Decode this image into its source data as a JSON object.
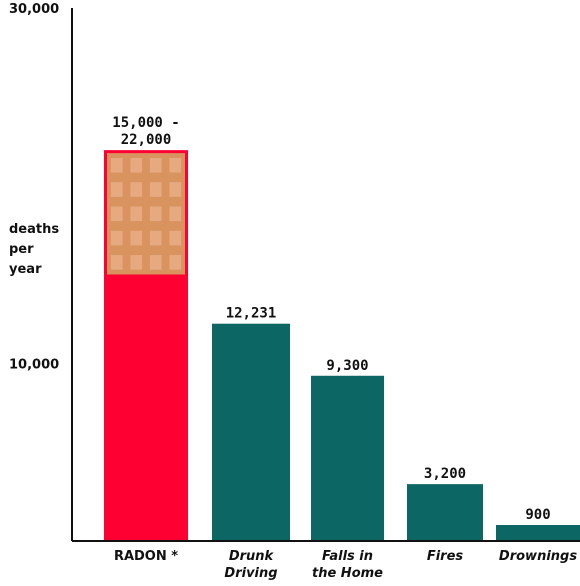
{
  "chart_data": {
    "type": "bar",
    "ylabel": "deaths per year",
    "ylabel_lines": [
      "deaths",
      "per",
      "year"
    ],
    "ylim": [
      0,
      30000
    ],
    "yticks": [
      {
        "value": 10000,
        "label": "10,000"
      },
      {
        "value": 30000,
        "label": "30,000"
      }
    ],
    "categories": [
      {
        "label": "RADON *",
        "lines": [
          "RADON *"
        ],
        "italic": false
      },
      {
        "label": "Drunk Driving",
        "lines": [
          "Drunk",
          "Driving"
        ],
        "italic": true
      },
      {
        "label": "Falls in the Home",
        "lines": [
          "Falls in",
          "the Home"
        ],
        "italic": true
      },
      {
        "label": "Fires",
        "lines": [
          "Fires"
        ],
        "italic": true
      },
      {
        "label": "Drownings",
        "lines": [
          "Drownings"
        ],
        "italic": true
      }
    ],
    "values": [
      22000,
      12231,
      9300,
      3200,
      900
    ],
    "range_low": [
      15000,
      null,
      null,
      null,
      null
    ],
    "data_labels": [
      {
        "lines": [
          "15,000 -",
          "22,000"
        ]
      },
      {
        "lines": [
          "12,231"
        ]
      },
      {
        "lines": [
          "9,300"
        ]
      },
      {
        "lines": [
          "3,200"
        ]
      },
      {
        "lines": [
          "900"
        ]
      }
    ],
    "colors": {
      "radon_bar": "#ff0033",
      "radon_range_fill": "#d9935f",
      "radon_range_cell": "#e7aa80",
      "other_bars": "#0b6664",
      "axis": "#111111"
    },
    "grid": false,
    "legend": "none"
  }
}
